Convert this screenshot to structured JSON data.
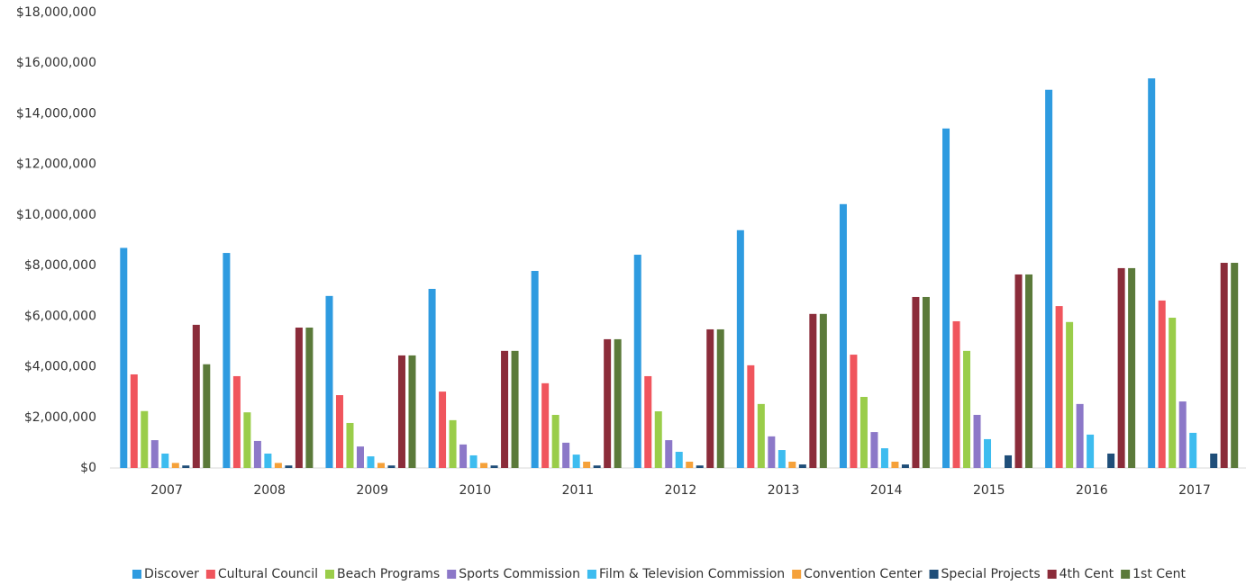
{
  "chart_data": {
    "type": "bar",
    "categories": [
      "2007",
      "2008",
      "2009",
      "2010",
      "2011",
      "2012",
      "2013",
      "2014",
      "2015",
      "2016",
      "2017"
    ],
    "series": [
      {
        "name": "Discover",
        "color": "#2e9be0",
        "values": [
          8700000,
          8500000,
          6800000,
          7080000,
          7790000,
          8430000,
          9400000,
          10430000,
          13420000,
          14950000,
          15400000
        ]
      },
      {
        "name": "Cultural Council",
        "color": "#f0555d",
        "values": [
          3700000,
          3630000,
          2880000,
          3020000,
          3350000,
          3630000,
          4060000,
          4480000,
          5800000,
          6400000,
          6620000
        ]
      },
      {
        "name": "Beach Programs",
        "color": "#9acd4a",
        "values": [
          2250000,
          2200000,
          1780000,
          1890000,
          2100000,
          2240000,
          2530000,
          2810000,
          4630000,
          5770000,
          5940000
        ]
      },
      {
        "name": "Sports Commission",
        "color": "#8c78c8",
        "values": [
          1100000,
          1070000,
          850000,
          930000,
          1000000,
          1100000,
          1250000,
          1420000,
          2100000,
          2530000,
          2630000
        ]
      },
      {
        "name": "Film & Television Commission",
        "color": "#3dbcef",
        "values": [
          570000,
          570000,
          460000,
          500000,
          530000,
          640000,
          710000,
          780000,
          1140000,
          1320000,
          1390000
        ]
      },
      {
        "name": "Convention Center",
        "color": "#f5a13a",
        "values": [
          200000,
          200000,
          200000,
          200000,
          250000,
          250000,
          250000,
          250000,
          null,
          null,
          null
        ]
      },
      {
        "name": "Special Projects",
        "color": "#1f4e79",
        "values": [
          100000,
          100000,
          100000,
          100000,
          100000,
          100000,
          140000,
          140000,
          500000,
          570000,
          570000
        ]
      },
      {
        "name": "4th Cent",
        "color": "#8b2c3a",
        "values": [
          5660000,
          5550000,
          4450000,
          4630000,
          5090000,
          5480000,
          6090000,
          6760000,
          7650000,
          7900000,
          8110000
        ]
      },
      {
        "name": "1st Cent",
        "color": "#5b7a3a",
        "values": [
          4100000,
          5550000,
          4450000,
          4630000,
          5090000,
          5480000,
          6090000,
          6760000,
          7650000,
          7900000,
          8110000
        ]
      }
    ],
    "ylim": [
      0,
      18000000
    ],
    "yticks": [
      {
        "value": 0,
        "label": "$0"
      },
      {
        "value": 2000000,
        "label": "$2,000,000"
      },
      {
        "value": 4000000,
        "label": "$4,000,000"
      },
      {
        "value": 6000000,
        "label": "$6,000,000"
      },
      {
        "value": 8000000,
        "label": "$8,000,000"
      },
      {
        "value": 10000000,
        "label": "$10,000,000"
      },
      {
        "value": 12000000,
        "label": "$12,000,000"
      },
      {
        "value": 14000000,
        "label": "$14,000,000"
      },
      {
        "value": 16000000,
        "label": "$16,000,000"
      },
      {
        "value": 18000000,
        "label": "$18,000,000"
      }
    ],
    "grid": false,
    "legend": "bottom"
  }
}
